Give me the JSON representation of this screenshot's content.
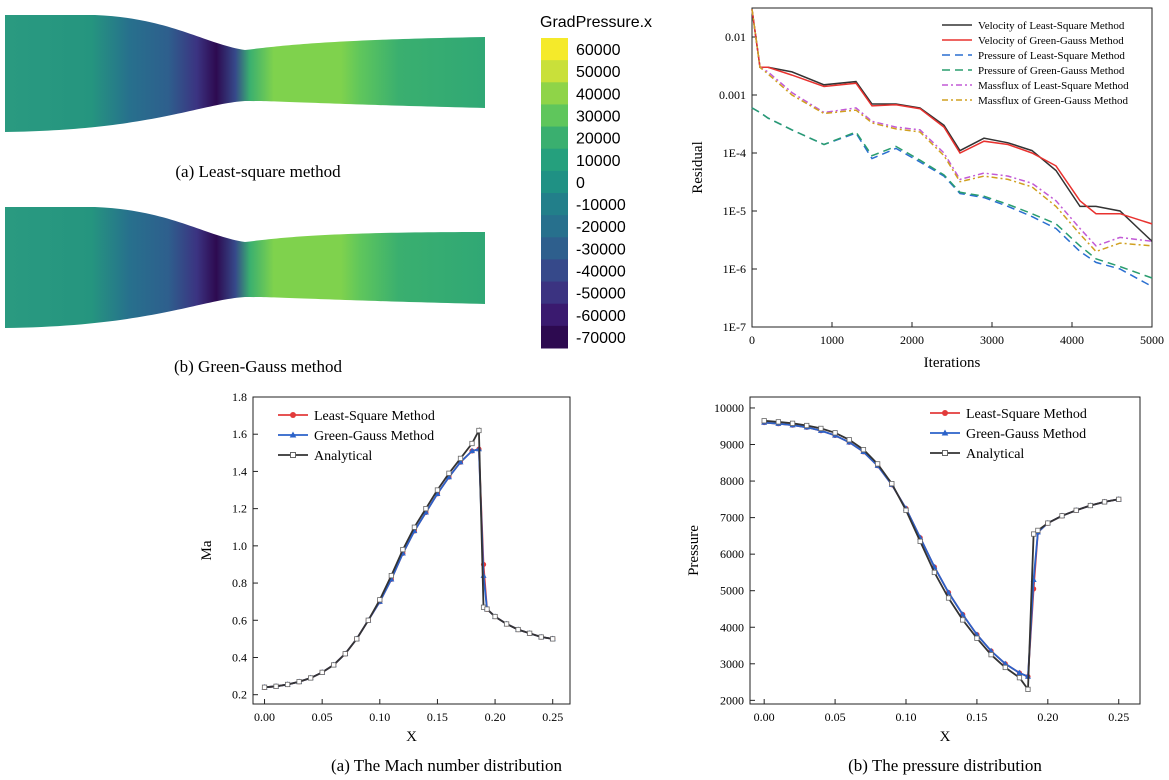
{
  "contour_panels": {
    "colorbar_title": "GradPressure.x",
    "colorbar_levels": [
      60000,
      50000,
      40000,
      30000,
      20000,
      10000,
      0,
      -10000,
      -20000,
      -30000,
      -40000,
      -50000,
      -60000,
      -70000
    ],
    "colorbar_colors": [
      "#f5ea2a",
      "#c9e03a",
      "#8fd448",
      "#5fc65c",
      "#3aaf6f",
      "#25a07d",
      "#1f9184",
      "#227f8a",
      "#27708d",
      "#2e5f8d",
      "#36498a",
      "#3b3381",
      "#3a1a6f",
      "#2d0a50"
    ],
    "caption_a": "(a) Least-square method",
    "caption_b": "(b) Green-Gauss method"
  },
  "chart_data": [
    {
      "type": "line",
      "title": "",
      "xlabel": "Iterations",
      "ylabel": "Residual",
      "xlim": [
        0,
        5000
      ],
      "ylim_log10": [
        -7,
        -1.5
      ],
      "xticks": [
        "0",
        "1000",
        "2000",
        "3000",
        "4000",
        "5000"
      ],
      "yticks": [
        "1E-7",
        "1E-6",
        "1E-5",
        "1E-4",
        "0.001",
        "0.01"
      ],
      "legend_position": "top-right",
      "x": [
        0,
        100,
        200,
        500,
        900,
        1300,
        1500,
        1800,
        2100,
        2400,
        2600,
        2900,
        3200,
        3500,
        3800,
        4100,
        4300,
        4600,
        5000
      ],
      "series": [
        {
          "name": "Velocity of Least-Square Method",
          "color": "#333333",
          "dash": "solid",
          "values": [
            0.03,
            0.003,
            0.003,
            0.0025,
            0.0015,
            0.0017,
            0.0007,
            0.0007,
            0.0006,
            0.0003,
            0.00011,
            0.00018,
            0.00015,
            0.00011,
            5e-05,
            1.2e-05,
            1.2e-05,
            1e-05,
            3e-06
          ]
        },
        {
          "name": "Velocity of Green-Gauss Method",
          "color": "#e8322f",
          "dash": "solid",
          "values": [
            0.03,
            0.003,
            0.003,
            0.0022,
            0.0014,
            0.0016,
            0.00065,
            0.00068,
            0.00058,
            0.00028,
            0.0001,
            0.00016,
            0.00014,
            0.0001,
            6e-05,
            1.5e-05,
            9e-06,
            9e-06,
            6e-06
          ]
        },
        {
          "name": "Pressure of Least-Square Method",
          "color": "#2a6fd0",
          "dash": "8,5",
          "values": [
            0.0006,
            0.0005,
            0.0004,
            0.00025,
            0.00014,
            0.00022,
            8e-05,
            0.00012,
            7e-05,
            4e-05,
            2e-05,
            1.7e-05,
            1.2e-05,
            8e-06,
            5e-06,
            2e-06,
            1.3e-06,
            1e-06,
            5e-07
          ]
        },
        {
          "name": "Pressure of Green-Gauss Method",
          "color": "#2a9d6f",
          "dash": "8,5",
          "values": [
            0.0006,
            0.0005,
            0.0004,
            0.00025,
            0.00014,
            0.00023,
            9e-05,
            0.00013,
            7.5e-05,
            4.2e-05,
            2.1e-05,
            1.8e-05,
            1.3e-05,
            9e-06,
            6e-06,
            2.5e-06,
            1.5e-06,
            1.1e-06,
            7e-07
          ]
        },
        {
          "name": "Massflux of Least-Square Method",
          "color": "#c25ad6",
          "dash": "6,3,2,3",
          "values": [
            0.03,
            0.003,
            0.0025,
            0.0011,
            0.0005,
            0.0006,
            0.00035,
            0.00028,
            0.00025,
            0.0001,
            3.5e-05,
            4.5e-05,
            4e-05,
            3e-05,
            1.5e-05,
            5e-06,
            2.5e-06,
            3.5e-06,
            3e-06
          ]
        },
        {
          "name": "Massflux of Green-Gauss Method",
          "color": "#d0a020",
          "dash": "6,3,2,3",
          "values": [
            0.03,
            0.003,
            0.0023,
            0.001,
            0.00048,
            0.00055,
            0.00033,
            0.00026,
            0.00023,
            9e-05,
            3.2e-05,
            4e-05,
            3.5e-05,
            2.6e-05,
            1.2e-05,
            4e-06,
            2e-06,
            2.8e-06,
            2.5e-06
          ]
        }
      ]
    },
    {
      "type": "line",
      "title": "",
      "caption": "(a) The Mach number distribution",
      "xlabel": "X",
      "ylabel": "Ma",
      "xlim": [
        -0.01,
        0.265
      ],
      "ylim": [
        0.15,
        1.8
      ],
      "xticks": [
        "0.00",
        "0.05",
        "0.10",
        "0.15",
        "0.20",
        "0.25"
      ],
      "yticks": [
        "0.2",
        "0.4",
        "0.6",
        "0.8",
        "1.0",
        "1.2",
        "1.4",
        "1.6",
        "1.8"
      ],
      "legend_position": "top-left",
      "x": [
        0,
        0.01,
        0.02,
        0.03,
        0.04,
        0.05,
        0.06,
        0.07,
        0.08,
        0.09,
        0.1,
        0.11,
        0.12,
        0.13,
        0.14,
        0.15,
        0.16,
        0.17,
        0.18,
        0.186,
        0.19,
        0.193,
        0.2,
        0.21,
        0.22,
        0.23,
        0.24,
        0.25
      ],
      "series": [
        {
          "name": "Least-Square Method",
          "color": "#e23b3b",
          "marker": "circle",
          "values": [
            0.24,
            0.245,
            0.255,
            0.27,
            0.29,
            0.32,
            0.36,
            0.42,
            0.5,
            0.6,
            0.7,
            0.82,
            0.96,
            1.08,
            1.18,
            1.28,
            1.37,
            1.45,
            1.51,
            1.52,
            0.9,
            0.66,
            0.62,
            0.58,
            0.55,
            0.53,
            0.51,
            0.5
          ]
        },
        {
          "name": "Green-Gauss Method",
          "color": "#2b62c9",
          "marker": "triangle",
          "values": [
            0.24,
            0.245,
            0.255,
            0.27,
            0.29,
            0.32,
            0.36,
            0.42,
            0.5,
            0.6,
            0.7,
            0.82,
            0.96,
            1.08,
            1.18,
            1.28,
            1.37,
            1.45,
            1.51,
            1.52,
            0.84,
            0.66,
            0.62,
            0.58,
            0.55,
            0.53,
            0.51,
            0.5
          ]
        },
        {
          "name": "Analytical",
          "color": "#333333",
          "marker": "open-square",
          "values": [
            0.24,
            0.245,
            0.255,
            0.27,
            0.29,
            0.32,
            0.36,
            0.42,
            0.5,
            0.6,
            0.71,
            0.84,
            0.98,
            1.1,
            1.2,
            1.3,
            1.39,
            1.47,
            1.55,
            1.62,
            0.67,
            0.66,
            0.62,
            0.58,
            0.55,
            0.53,
            0.51,
            0.5
          ]
        }
      ]
    },
    {
      "type": "line",
      "title": "",
      "caption": "(b) The pressure distribution",
      "xlabel": "X",
      "ylabel": "Pressure",
      "xlim": [
        -0.01,
        0.265
      ],
      "ylim": [
        1900,
        10300
      ],
      "xticks": [
        "0.00",
        "0.05",
        "0.10",
        "0.15",
        "0.20",
        "0.25"
      ],
      "yticks": [
        "2000",
        "3000",
        "4000",
        "5000",
        "6000",
        "7000",
        "8000",
        "9000",
        "10000"
      ],
      "legend_position": "top-right",
      "x": [
        0,
        0.01,
        0.02,
        0.03,
        0.04,
        0.05,
        0.06,
        0.07,
        0.08,
        0.09,
        0.1,
        0.11,
        0.12,
        0.13,
        0.14,
        0.15,
        0.16,
        0.17,
        0.18,
        0.186,
        0.19,
        0.193,
        0.2,
        0.21,
        0.22,
        0.23,
        0.24,
        0.25
      ],
      "series": [
        {
          "name": "Least-Square Method",
          "color": "#e23b3b",
          "marker": "circle",
          "values": [
            9600,
            9570,
            9530,
            9470,
            9380,
            9250,
            9060,
            8800,
            8420,
            7900,
            7250,
            6450,
            5650,
            4950,
            4350,
            3800,
            3350,
            3000,
            2750,
            2650,
            5050,
            6600,
            6850,
            7050,
            7200,
            7330,
            7430,
            7500
          ]
        },
        {
          "name": "Green-Gauss Method",
          "color": "#2b62c9",
          "marker": "triangle",
          "values": [
            9600,
            9570,
            9530,
            9470,
            9380,
            9250,
            9060,
            8800,
            8420,
            7900,
            7250,
            6450,
            5650,
            4950,
            4350,
            3800,
            3350,
            3000,
            2750,
            2650,
            5300,
            6600,
            6850,
            7050,
            7200,
            7330,
            7430,
            7500
          ]
        },
        {
          "name": "Analytical",
          "color": "#333333",
          "marker": "open-square",
          "values": [
            9650,
            9620,
            9580,
            9520,
            9440,
            9320,
            9130,
            8860,
            8470,
            7930,
            7200,
            6350,
            5500,
            4800,
            4200,
            3700,
            3250,
            2900,
            2620,
            2300,
            6550,
            6650,
            6850,
            7050,
            7200,
            7330,
            7430,
            7500
          ]
        }
      ]
    }
  ]
}
